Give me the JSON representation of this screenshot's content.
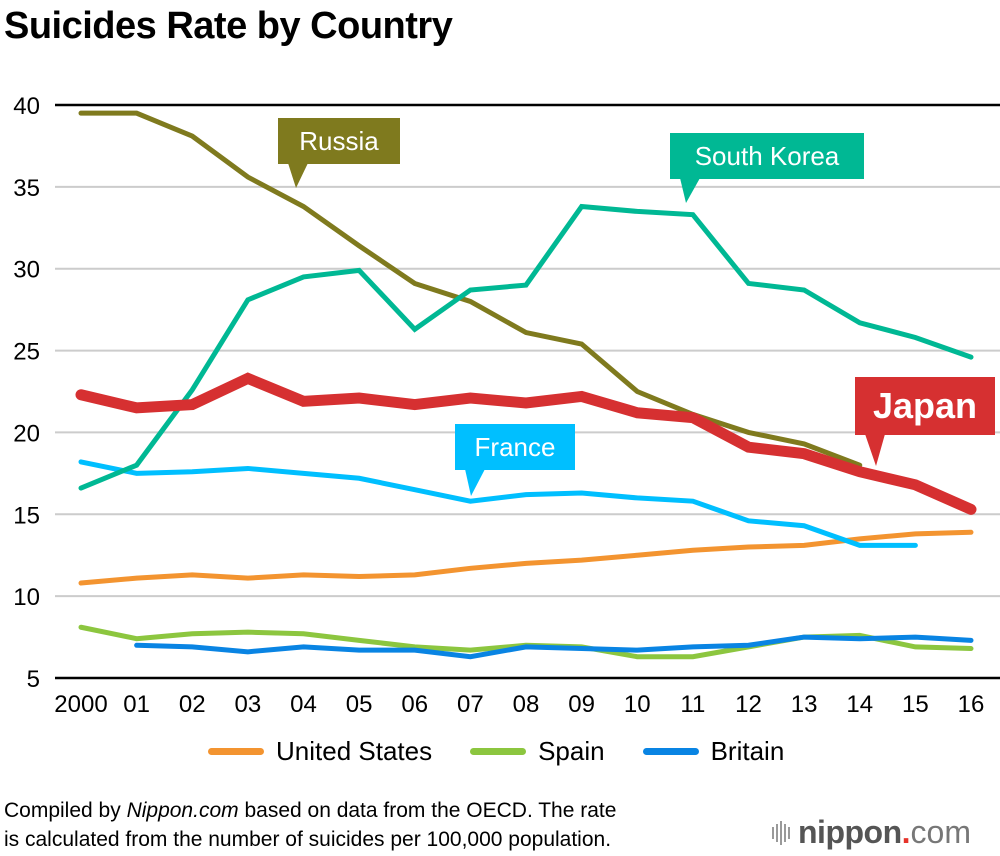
{
  "chart_data": {
    "type": "line",
    "title": "Suicides Rate by Country",
    "xlabel": "",
    "ylabel": "",
    "x": [
      "2000",
      "01",
      "02",
      "03",
      "04",
      "05",
      "06",
      "07",
      "08",
      "09",
      "10",
      "11",
      "12",
      "13",
      "14",
      "15",
      "16"
    ],
    "ylim": [
      5,
      40
    ],
    "yticks": [
      "40",
      "35",
      "30",
      "25",
      "20",
      "15",
      "10",
      "5"
    ],
    "ytick_values": [
      40,
      35,
      30,
      25,
      20,
      15,
      10,
      5
    ],
    "grid": true,
    "series": [
      {
        "name": "Russia",
        "color": "#7f7a1e",
        "labeled": true,
        "values": [
          39.5,
          39.5,
          38.1,
          35.6,
          33.8,
          31.4,
          29.1,
          28.0,
          26.1,
          25.4,
          22.5,
          21.1,
          20.0,
          19.3,
          18.0,
          null,
          null
        ]
      },
      {
        "name": "South Korea",
        "color": "#00b894",
        "labeled": true,
        "values": [
          16.6,
          18.0,
          22.6,
          28.1,
          29.5,
          29.9,
          26.3,
          28.7,
          29.0,
          33.8,
          33.5,
          33.3,
          29.1,
          28.7,
          26.7,
          25.8,
          24.6
        ]
      },
      {
        "name": "Japan",
        "color": "#d63031",
        "labeled": true,
        "values": [
          22.3,
          21.5,
          21.7,
          23.3,
          21.9,
          22.1,
          21.7,
          22.1,
          21.8,
          22.2,
          21.2,
          20.9,
          19.1,
          18.7,
          17.6,
          16.8,
          15.3
        ]
      },
      {
        "name": "France",
        "color": "#00bfff",
        "labeled": true,
        "values": [
          18.2,
          17.5,
          17.6,
          17.8,
          17.5,
          17.2,
          16.5,
          15.8,
          16.2,
          16.3,
          16.0,
          15.8,
          14.6,
          14.3,
          13.1,
          13.1,
          null
        ]
      },
      {
        "name": "United States",
        "color": "#f39430",
        "labeled": false,
        "values": [
          10.8,
          11.1,
          11.3,
          11.1,
          11.3,
          11.2,
          11.3,
          11.7,
          12.0,
          12.2,
          12.5,
          12.8,
          13.0,
          13.1,
          13.5,
          13.8,
          13.9
        ]
      },
      {
        "name": "Spain",
        "color": "#8cc63f",
        "labeled": false,
        "values": [
          8.1,
          7.4,
          7.7,
          7.8,
          7.7,
          7.3,
          6.9,
          6.7,
          7.0,
          6.9,
          6.3,
          6.3,
          6.9,
          7.5,
          7.6,
          6.9,
          6.8
        ]
      },
      {
        "name": "Britain",
        "color": "#0984e3",
        "labeled": false,
        "values": [
          null,
          7.0,
          6.9,
          6.6,
          6.9,
          6.7,
          6.7,
          6.3,
          6.9,
          6.8,
          6.7,
          6.9,
          7.0,
          7.5,
          7.4,
          7.5,
          7.3
        ]
      }
    ],
    "callouts": [
      {
        "series": "Russia",
        "label": "Russia",
        "color": "#7f7a1e"
      },
      {
        "series": "South Korea",
        "label": "South Korea",
        "color": "#00b894"
      },
      {
        "series": "France",
        "label": "France",
        "color": "#00bfff"
      },
      {
        "series": "Japan",
        "label": "Japan",
        "color": "#d63031"
      }
    ],
    "legend": [
      {
        "label": "United States",
        "color": "#f39430"
      },
      {
        "label": "Spain",
        "color": "#8cc63f"
      },
      {
        "label": "Britain",
        "color": "#0984e3"
      }
    ],
    "legend_position": "bottom-center"
  },
  "footnote": {
    "prefix": "Compiled by ",
    "source_italic": "Nippon.com",
    "line1_rest": " based on data from the OECD. The rate",
    "line2": "is calculated from the number of suicides per 100,000 population."
  },
  "brand": {
    "name": "nippon",
    "dot": ".",
    "tld": "com",
    "accent_color": "#e6332a"
  }
}
